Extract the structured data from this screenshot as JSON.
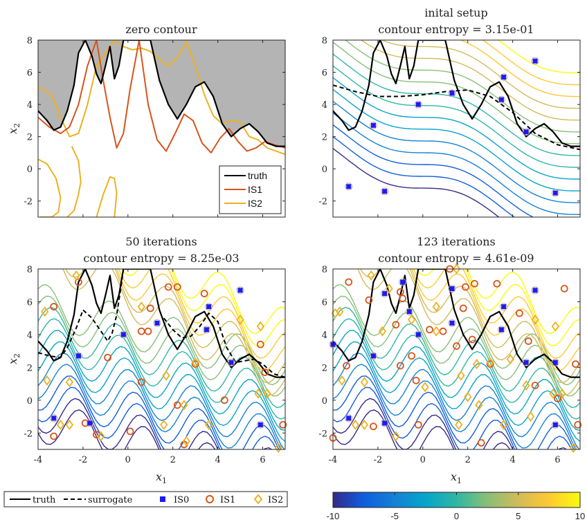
{
  "panels": [
    {
      "title": [
        "zero contour"
      ],
      "legend": [
        "truth",
        "IS1",
        "IS2"
      ]
    },
    {
      "title": [
        "inital setup",
        "contour entropy = 3.15e-01"
      ]
    },
    {
      "title": [
        "50 iterations",
        "contour entropy = 8.25e-03"
      ]
    },
    {
      "title": [
        "123 iterations",
        "contour entropy = 4.61e-09"
      ]
    }
  ],
  "axis_labels": {
    "x": "x",
    "x_sub": "1",
    "y": "x",
    "y_sub": "2"
  },
  "legend_bottom": [
    "truth",
    "surrogate",
    "IS0",
    "IS1",
    "IS2"
  ],
  "colorbar": {
    "ticks": [
      "-10",
      "-5",
      "0",
      "5",
      "10"
    ],
    "range": [
      -10,
      10
    ]
  },
  "colors": {
    "truth": "#000000",
    "IS1": "#d95319",
    "IS2": "#edb120",
    "IS0": "#1c1cf0",
    "fill": "#b4b4b4"
  },
  "chart_data": [
    {
      "type": "contour",
      "title": "zero contour",
      "xlabel": "",
      "ylabel": "x2",
      "xlim": [
        -4,
        7
      ],
      "ylim": [
        -3,
        8
      ],
      "yticks": [
        -2,
        0,
        2,
        4,
        6,
        8
      ],
      "series": [
        {
          "name": "truth",
          "x": [
            -4,
            -3.6,
            -3.3,
            -3,
            -2.7,
            -2.4,
            -2.2,
            -1.9,
            -1.6,
            -1.4,
            -1.2,
            -1,
            -0.8,
            -0.6,
            -0.4,
            -0.2,
            0,
            0.3,
            0.6,
            1,
            1.4,
            1.8,
            2.2,
            2.6,
            3,
            3.4,
            3.8,
            4.2,
            4.6,
            5,
            5.4,
            5.8,
            6.2,
            6.6,
            7
          ],
          "y": [
            3.6,
            3,
            2.4,
            2.6,
            3.6,
            5.2,
            7.2,
            8,
            7,
            5.9,
            5.3,
            6.4,
            7.6,
            5.6,
            6.4,
            8,
            8,
            8,
            8,
            8,
            5.5,
            4,
            3.1,
            4,
            5.1,
            5.4,
            4.5,
            2.8,
            2,
            2.5,
            2.8,
            2.3,
            1.6,
            1.4,
            1.4
          ]
        },
        {
          "name": "IS1",
          "x": [
            -4,
            -3.5,
            -3,
            -2.6,
            -2.2,
            -1.8,
            -1.4,
            -1.1,
            -0.8,
            -0.5,
            -0.2,
            0.1,
            0.5,
            0.9,
            1.3,
            1.7,
            2.1,
            2.5,
            2.9,
            3.3,
            3.7,
            4.1,
            4.5,
            4.9,
            5.3,
            5.7,
            6.1,
            6.5,
            7
          ],
          "y": [
            3.2,
            2.6,
            2.2,
            2.6,
            4,
            6.4,
            8,
            5.5,
            3.2,
            1.3,
            2.2,
            5,
            8,
            4,
            1.8,
            1.1,
            2.2,
            3.4,
            3,
            1.6,
            1,
            1.9,
            2.5,
            1.7,
            1.1,
            1.3,
            1.7,
            1.5,
            1.3
          ]
        },
        {
          "name": "IS2",
          "x": [
            -4,
            -3.4,
            -3,
            -2.6,
            -2.2,
            -1.8,
            -1.4,
            -1,
            -0.6,
            -0.2,
            0.2,
            0.6,
            1,
            1.4,
            1.8,
            2.2,
            2.6,
            3,
            3.4,
            3.8,
            4.2,
            4.6,
            5,
            5.4,
            5.8,
            6.2,
            6.6,
            7
          ],
          "y": [
            5.1,
            4.6,
            3.2,
            2,
            2.2,
            4,
            6.4,
            7.2,
            8,
            7.6,
            7.4,
            7.5,
            7.3,
            6.8,
            6.4,
            6.9,
            7.9,
            6.4,
            4.6,
            3.3,
            2.8,
            3,
            2.9,
            2,
            1.8,
            1.3,
            1.1,
            0.9
          ]
        }
      ]
    },
    {
      "type": "contour",
      "title": "inital setup",
      "contour_entropy": "3.15e-01",
      "xlim": [
        -4,
        7
      ],
      "ylim": [
        -3,
        8
      ],
      "points": {
        "IS0": [
          [
            -3.3,
            -1.1
          ],
          [
            -2.2,
            2.7
          ],
          [
            -1.7,
            -1.4
          ],
          [
            -0.2,
            4
          ],
          [
            1.3,
            4.7
          ],
          [
            3.6,
            5.7
          ],
          [
            3.5,
            4.3
          ],
          [
            4.6,
            2.3
          ],
          [
            5,
            6.7
          ],
          [
            5.9,
            -1.5
          ]
        ]
      }
    },
    {
      "type": "contour",
      "title": "50 iterations",
      "contour_entropy": "8.25e-03",
      "xlabel": "x1",
      "ylabel": "x2",
      "xlim": [
        -4,
        7
      ],
      "ylim": [
        -3,
        8
      ],
      "xticks": [
        -4,
        -2,
        0,
        2,
        4,
        6
      ],
      "points": {
        "IS0": [
          [
            -3.3,
            -1.1
          ],
          [
            -2.2,
            2.7
          ],
          [
            -1.7,
            -1.4
          ],
          [
            -0.2,
            4
          ],
          [
            1.3,
            4.7
          ],
          [
            3.6,
            5.7
          ],
          [
            3.5,
            4.3
          ],
          [
            4.6,
            2.3
          ],
          [
            5,
            6.7
          ],
          [
            5.9,
            -1.5
          ]
        ],
        "IS1": [
          [
            -3.3,
            5.7
          ],
          [
            -3.3,
            -2.2
          ],
          [
            -2.2,
            7.2
          ],
          [
            -1.9,
            -1.4
          ],
          [
            -1.4,
            -2.1
          ],
          [
            -0.9,
            2.6
          ],
          [
            0.1,
            -1.9
          ],
          [
            0.6,
            4.2
          ],
          [
            0.9,
            4.2
          ],
          [
            0.6,
            1.1
          ],
          [
            1,
            5.6
          ],
          [
            1.8,
            6.9
          ],
          [
            2.2,
            6.9
          ],
          [
            2.2,
            -0.3
          ],
          [
            2.5,
            -2.7
          ],
          [
            3.0,
            2.2
          ],
          [
            3.4,
            6.5
          ],
          [
            4.3,
            0.0
          ],
          [
            5.9,
            3.4
          ],
          [
            6.1,
            1.7
          ],
          [
            6.9,
            -1.5
          ]
        ],
        "IS2": [
          [
            -3.7,
            5.4
          ],
          [
            -3.6,
            1.2
          ],
          [
            -3.0,
            -1.5
          ],
          [
            -2.6,
            1.1
          ],
          [
            -2.6,
            -1.5
          ],
          [
            -2.3,
            7.6
          ],
          [
            -1.2,
            -2.2
          ],
          [
            0.6,
            5.7
          ],
          [
            1.7,
            1.5
          ],
          [
            2.5,
            -0.3
          ],
          [
            1.6,
            -1.5
          ],
          [
            3.0,
            2.3
          ],
          [
            3.6,
            -1.5
          ],
          [
            5.0,
            4.9
          ],
          [
            5.9,
            4.5
          ],
          [
            5.8,
            0.4
          ],
          [
            6.2,
            0.4
          ],
          [
            6.7,
            -2.9
          ],
          [
            2.6,
            -2.5
          ]
        ]
      }
    },
    {
      "type": "contour",
      "title": "123 iterations",
      "contour_entropy": "4.61e-09",
      "xlabel": "x1",
      "xlim": [
        -4,
        7
      ],
      "ylim": [
        -3,
        8
      ],
      "xticks": [
        -4,
        -2,
        0,
        2,
        4,
        6
      ],
      "points": {
        "IS0": [
          [
            -4,
            3.4
          ],
          [
            -3.3,
            -1.1
          ],
          [
            -2.2,
            2.7
          ],
          [
            -1.7,
            -1.4
          ],
          [
            -1.7,
            6.5
          ],
          [
            -0.9,
            7.2
          ],
          [
            -0.6,
            5.4
          ],
          [
            -0.2,
            4
          ],
          [
            1.3,
            4.7
          ],
          [
            1.3,
            6.8
          ],
          [
            3.6,
            5.7
          ],
          [
            3.5,
            4.3
          ],
          [
            4.6,
            2.3
          ],
          [
            5,
            6.7
          ],
          [
            5.9,
            2.3
          ],
          [
            5.9,
            -1.5
          ]
        ],
        "IS1": [
          [
            -3.3,
            7.2
          ],
          [
            -3.4,
            2.1
          ],
          [
            -2.4,
            6.1
          ],
          [
            -2.2,
            -1.6
          ],
          [
            -1.2,
            4.6
          ],
          [
            -1.0,
            6.6
          ],
          [
            -1,
            2.1
          ],
          [
            -0.9,
            6.2
          ],
          [
            -0.5,
            2.7
          ],
          [
            -0.3,
            1.2
          ],
          [
            -0.2,
            -1.5
          ],
          [
            0.3,
            4.3
          ],
          [
            1.5,
            3.3
          ],
          [
            1.9,
            6.9
          ],
          [
            2.3,
            7.1
          ],
          [
            2.2,
            3.7
          ],
          [
            2.6,
            -2.6
          ],
          [
            3.0,
            2.2
          ],
          [
            3.3,
            7.1
          ],
          [
            4.3,
            5.3
          ],
          [
            4.7,
            3.6
          ],
          [
            5.0,
            0.9
          ],
          [
            6.0,
            0.1
          ],
          [
            6.3,
            6.8
          ],
          [
            6.8,
            2.2
          ],
          [
            6.9,
            -1.5
          ],
          [
            -4,
            -2.3
          ],
          [
            0.9,
            4.2
          ],
          [
            1.2,
            8
          ],
          [
            1.8,
            5.6
          ]
        ],
        "IS2": [
          [
            -3.7,
            5.4
          ],
          [
            -3.6,
            1.2
          ],
          [
            -3.0,
            -1.5
          ],
          [
            -2.6,
            1.1
          ],
          [
            -2.6,
            -1.5
          ],
          [
            -2.3,
            7.6
          ],
          [
            -1.2,
            -2.2
          ],
          [
            0.6,
            5.7
          ],
          [
            1.7,
            1.5
          ],
          [
            2.5,
            -0.3
          ],
          [
            1.6,
            -1.5
          ],
          [
            3.0,
            2.3
          ],
          [
            3.6,
            -1.5
          ],
          [
            5.0,
            4.9
          ],
          [
            5.9,
            4.5
          ],
          [
            5.8,
            0.4
          ],
          [
            6.2,
            0.4
          ],
          [
            6.7,
            -2.9
          ],
          [
            -3.9,
            5.3
          ],
          [
            -1.8,
            4.2
          ],
          [
            -1.5,
            6.8
          ],
          [
            -0.5,
            4.9
          ],
          [
            0.1,
            0.8
          ],
          [
            0.6,
            4.2
          ],
          [
            1.5,
            8
          ],
          [
            2.0,
            0.2
          ],
          [
            2.4,
            2.2
          ],
          [
            3.9,
            2.5
          ],
          [
            4.6,
            0.9
          ],
          [
            4.8,
            -1.0
          ]
        ]
      }
    }
  ]
}
